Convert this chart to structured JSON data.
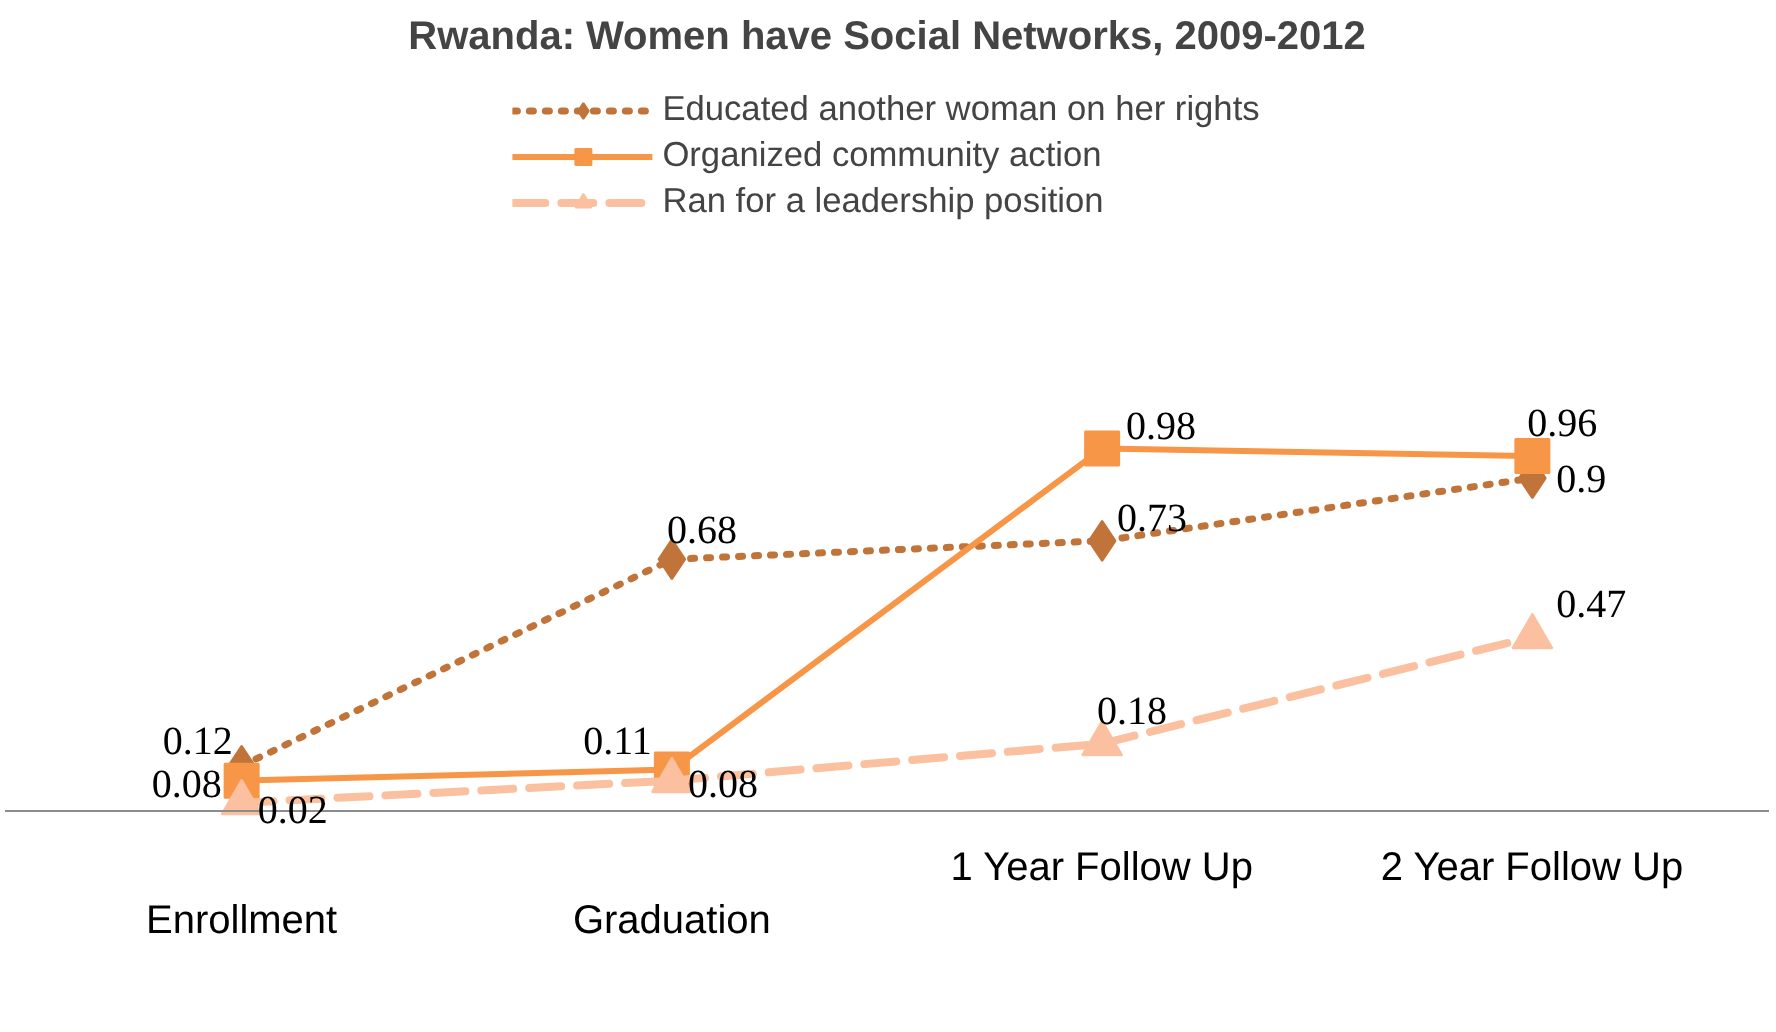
{
  "chart_data": {
    "type": "line",
    "title": "Rwanda: Women have Social Networks, 2009-2012",
    "categories": [
      "Enrollment",
      "Graduation",
      "1 Year Follow Up",
      "2 Year Follow Up"
    ],
    "series": [
      {
        "name": "Educated another woman on her rights",
        "color": "#c0743a",
        "values": [
          0.12,
          0.68,
          0.73,
          0.9
        ],
        "marker": "diamond",
        "line_style": "dotted"
      },
      {
        "name": "Organized community action",
        "color": "#f79646",
        "values": [
          0.08,
          0.11,
          0.98,
          0.96
        ],
        "marker": "square",
        "line_style": "solid"
      },
      {
        "name": "Ran for a leadership position",
        "color": "#fac09f",
        "values": [
          0.02,
          0.08,
          0.18,
          0.47
        ],
        "marker": "triangle",
        "line_style": "dashed"
      }
    ],
    "data_labels": true,
    "legend": "top",
    "tick_labels": "x"
  }
}
